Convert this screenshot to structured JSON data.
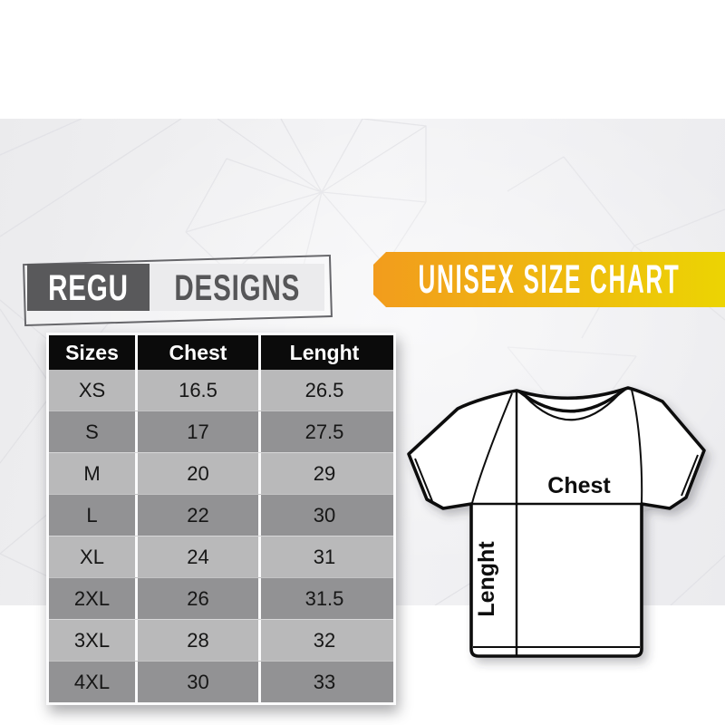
{
  "brand": {
    "name_primary": "REGU",
    "name_secondary": "DESIGNS"
  },
  "banner": {
    "title": "UNISEX SIZE CHART",
    "color_left": "#f29c1d",
    "color_right": "#ecd403"
  },
  "size_table": {
    "columns": [
      "Sizes",
      "Chest",
      "Lenght"
    ],
    "rows": [
      [
        "XS",
        "16.5",
        "26.5"
      ],
      [
        "S",
        "17",
        "27.5"
      ],
      [
        "M",
        "20",
        "29"
      ],
      [
        "L",
        "22",
        "30"
      ],
      [
        "XL",
        "24",
        "31"
      ],
      [
        "2XL",
        "26",
        "31.5"
      ],
      [
        "3XL",
        "28",
        "32"
      ],
      [
        "4XL",
        "30",
        "33"
      ]
    ],
    "header_bg": "#0b0b0b",
    "row_color_light": "#b9b9ba",
    "row_color_dark": "#929294"
  },
  "shirt_diagram": {
    "chest_label": "Chest",
    "length_label": "Lenght"
  },
  "chart_data": {
    "type": "table",
    "title": "UNISEX SIZE CHART",
    "columns": [
      "Sizes",
      "Chest",
      "Lenght"
    ],
    "rows": [
      {
        "size": "XS",
        "chest": 16.5,
        "length": 26.5
      },
      {
        "size": "S",
        "chest": 17,
        "length": 27.5
      },
      {
        "size": "M",
        "chest": 20,
        "length": 29
      },
      {
        "size": "L",
        "chest": 22,
        "length": 30
      },
      {
        "size": "XL",
        "chest": 24,
        "length": 31
      },
      {
        "size": "2XL",
        "chest": 26,
        "length": 31.5
      },
      {
        "size": "3XL",
        "chest": 28,
        "length": 32
      },
      {
        "size": "4XL",
        "chest": 30,
        "length": 33
      }
    ]
  }
}
